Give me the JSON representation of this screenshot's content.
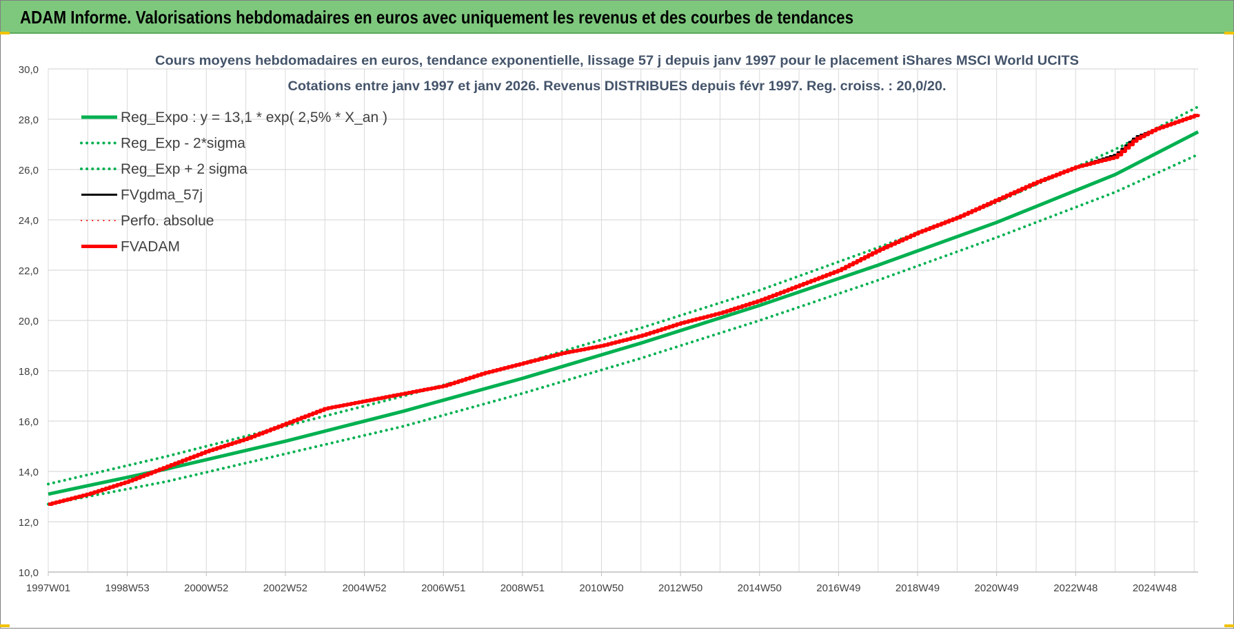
{
  "header": {
    "title": "ADAM Informe. Valorisations hebdomadaires en euros avec uniquement les revenus et des courbes de tendances"
  },
  "colors": {
    "header_bg": "#7ec87e",
    "green": "#00b050",
    "red": "#ff0000",
    "black": "#000000",
    "grid": "#d9d9d9",
    "axis_text": "#404040"
  },
  "chart_data": {
    "type": "line",
    "title_line1": "Cours moyens hebdomadaires en euros, tendance exponentielle, lissage 57 j depuis janv 1997 pour le placement iShares MSCI World UCITS",
    "title_line2": "Cotations entre janv 1997 et janv 2026. Revenus DISTRIBUES depuis févr 1997. Reg. croiss. : 20,0/20.",
    "x_tick_labels": [
      "1997W01",
      "1998W53",
      "2000W52",
      "2002W52",
      "2004W52",
      "2006W51",
      "2008W51",
      "2010W50",
      "2012W50",
      "2014W50",
      "2016W49",
      "2018W49",
      "2020W49",
      "2022W48",
      "2024W48"
    ],
    "x_tick_years": [
      1997.0,
      1999.0,
      2001.0,
      2003.0,
      2005.0,
      2007.0,
      2009.0,
      2011.0,
      2013.0,
      2015.0,
      2017.0,
      2019.0,
      2021.0,
      2023.0,
      2025.0
    ],
    "xlim": [
      1997.0,
      2026.1
    ],
    "y_tick_labels": [
      "10,0",
      "12,0",
      "14,0",
      "16,0",
      "18,0",
      "20,0",
      "22,0",
      "24,0",
      "26,0",
      "28,0",
      "30,0"
    ],
    "y_ticks": [
      10,
      12,
      14,
      16,
      18,
      20,
      22,
      24,
      26,
      28,
      30
    ],
    "ylim": [
      10,
      30
    ],
    "grid": true,
    "legend_position": "top-left",
    "legend": [
      {
        "name": "Reg_Expo : y = 13,1 * exp( 2,5% *  X_an )",
        "color": "#00b050",
        "style": "solid",
        "width": 5
      },
      {
        "name": "Reg_Exp - 2*sigma",
        "color": "#00b050",
        "style": "dotted",
        "width": 4
      },
      {
        "name": "Reg_Exp + 2 sigma",
        "color": "#00b050",
        "style": "dotted",
        "width": 4
      },
      {
        "name": "FVgdma_57j",
        "color": "#000000",
        "style": "solid",
        "width": 3
      },
      {
        "name": "Perfo. absolue",
        "color": "#ff0000",
        "style": "dotted",
        "width": 2
      },
      {
        "name": "FVADAM",
        "color": "#ff0000",
        "style": "solid",
        "width": 5
      }
    ],
    "series": [
      {
        "name": "Reg_Expo : y = 13,1 * exp( 2,5% *  X_an )",
        "x": [
          1997,
          2000,
          2003,
          2006,
          2009,
          2012,
          2015,
          2018,
          2021,
          2024,
          2026.1
        ],
        "y": [
          13.1,
          14.1,
          15.2,
          16.4,
          17.7,
          19.1,
          20.6,
          22.2,
          23.9,
          25.8,
          27.5
        ]
      },
      {
        "name": "Reg_Exp - 2*sigma",
        "x": [
          1997,
          2000,
          2003,
          2006,
          2009,
          2012,
          2015,
          2018,
          2021,
          2024,
          2026.1
        ],
        "y": [
          12.7,
          13.6,
          14.7,
          15.8,
          17.1,
          18.5,
          20.0,
          21.6,
          23.3,
          25.1,
          26.6
        ]
      },
      {
        "name": "Reg_Exp + 2 sigma",
        "x": [
          1997,
          2000,
          2003,
          2006,
          2009,
          2012,
          2015,
          2018,
          2021,
          2024,
          2026.1
        ],
        "y": [
          13.5,
          14.6,
          15.8,
          17.0,
          18.3,
          19.7,
          21.2,
          22.9,
          24.7,
          26.8,
          28.5
        ]
      },
      {
        "name": "FVgdma_57j",
        "x": [
          1997,
          1998,
          1999,
          2000,
          2001,
          2002,
          2003,
          2004,
          2005,
          2006,
          2007,
          2008,
          2009,
          2010,
          2011,
          2012,
          2013,
          2014,
          2015,
          2016,
          2017,
          2018,
          2019,
          2020,
          2021,
          2022,
          2023,
          2024,
          2024.5,
          2025,
          2026.1
        ],
        "y": [
          12.7,
          13.1,
          13.6,
          14.2,
          14.8,
          15.3,
          15.9,
          16.5,
          16.8,
          17.1,
          17.4,
          17.9,
          18.3,
          18.7,
          19.0,
          19.4,
          19.9,
          20.3,
          20.8,
          21.4,
          22.0,
          22.8,
          23.5,
          24.1,
          24.8,
          25.5,
          26.1,
          26.6,
          27.3,
          27.6,
          28.2
        ]
      },
      {
        "name": "FVADAM",
        "x": [
          1997,
          1998,
          1999,
          2000,
          2001,
          2002,
          2003,
          2004,
          2005,
          2006,
          2007,
          2008,
          2009,
          2010,
          2011,
          2012,
          2013,
          2014,
          2015,
          2016,
          2017,
          2018,
          2019,
          2020,
          2021,
          2022,
          2023,
          2024,
          2024.5,
          2025,
          2026.1
        ],
        "y": [
          12.7,
          13.1,
          13.6,
          14.2,
          14.8,
          15.3,
          15.9,
          16.5,
          16.8,
          17.1,
          17.4,
          17.9,
          18.3,
          18.7,
          19.0,
          19.4,
          19.9,
          20.3,
          20.8,
          21.4,
          22.0,
          22.8,
          23.5,
          24.1,
          24.8,
          25.5,
          26.1,
          26.5,
          27.2,
          27.6,
          28.2
        ]
      }
    ]
  }
}
